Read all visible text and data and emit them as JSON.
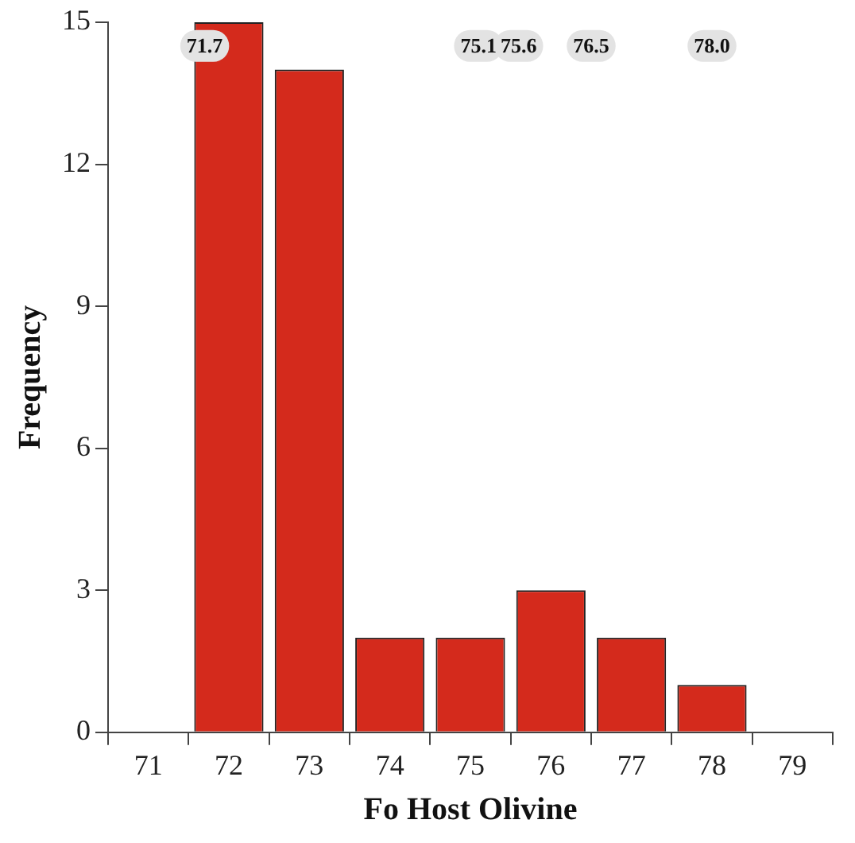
{
  "chart_data": {
    "type": "histogram",
    "xlabel": "Fo Host Olivine",
    "ylabel": "Frequency",
    "bins": [
      70.5,
      71.5,
      72.5,
      73.5,
      74.5,
      75.5,
      76.5,
      77.5,
      78.5,
      79.5
    ],
    "values": [
      0,
      15,
      14,
      2,
      2,
      3,
      2,
      1,
      0
    ],
    "color": "#d42a1c",
    "xlim": [
      70.5,
      79.5
    ],
    "xticks": [
      71,
      72,
      73,
      74,
      75,
      76,
      77,
      78,
      79
    ],
    "ylim": [
      0,
      15
    ],
    "yticks": [
      0,
      3,
      6,
      9,
      12,
      15
    ],
    "grid": false,
    "legend": false,
    "annotations": [
      {
        "text": "71.7",
        "x": 71.7,
        "y": 14.5
      },
      {
        "text": "75.1",
        "x": 75.1,
        "y": 14.5
      },
      {
        "text": "75.6",
        "x": 75.6,
        "y": 14.5
      },
      {
        "text": "76.5",
        "x": 76.5,
        "y": 14.5
      },
      {
        "text": "78.0",
        "x": 78.0,
        "y": 14.5
      }
    ]
  }
}
